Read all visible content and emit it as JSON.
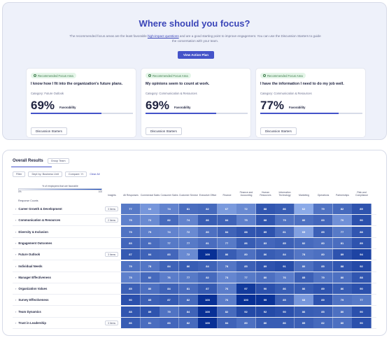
{
  "focus": {
    "title": "Where should you focus?",
    "desc_part1": "The recommended focus areas are the least favorable",
    "desc_link": "high-impact questions",
    "desc_part2": "and are a good starting point to improve engagement. You can use the Discussion Starters to guide the conversation with your team.",
    "action_button": "View Action Plan",
    "cards": [
      {
        "tag": "Recommended Focus Area",
        "title": "I know how I fit into the organization's future plans.",
        "category": "Category: Future Outlook",
        "percent": "69%",
        "percent_value": 69,
        "fav_label": "Favorability",
        "button": "Discussion Starters"
      },
      {
        "tag": "Recommended Focus Area",
        "title": "My opinions seem to count at work.",
        "category": "Category: Communication & Resources",
        "percent": "69%",
        "percent_value": 69,
        "fav_label": "Favorability",
        "button": "Discussion Starters"
      },
      {
        "tag": "Recommended Focus Area",
        "title": "I have the information I need to do my job well.",
        "category": "Category: Communication & Resources",
        "percent": "77%",
        "percent_value": 77,
        "fav_label": "Favorability",
        "button": "Discussion Starters"
      }
    ]
  },
  "results": {
    "title": "Overall Results",
    "header_pill": "Group Team",
    "filters": [
      "Filter",
      "Dept by: Business Unit",
      "Compare: Yr"
    ],
    "filter_link": "Clear All",
    "legend_label": "% of employees that are favorable",
    "legend_low": "0%",
    "legend_high": "100",
    "response_label": "Response Counts",
    "columns": [
      "Insights",
      "All Responses",
      "Commercial Sales",
      "Consumer Sales",
      "Customer Service",
      "Executive Office",
      "Finance",
      "Finance and Accounting",
      "Human Resources",
      "Information Technology",
      "Marketing",
      "Operations",
      "Partnerships",
      "Risk and Compliance"
    ],
    "rows": [
      {
        "label": "Career Growth & Development",
        "badge": "3 Items",
        "values": [
          77,
          68,
          74,
          81,
          82,
          67,
          72,
          88,
          86,
          62,
          79,
          82,
          89
        ]
      },
      {
        "label": "Communication & Resources",
        "badge": "2 Items",
        "values": [
          75,
          72,
          82,
          74,
          86,
          84,
          75,
          88,
          79,
          80,
          83,
          70,
          90
        ]
      },
      {
        "label": "Diversity & Inclusion",
        "badge": "",
        "values": [
          79,
          75,
          74,
          72,
          80,
          84,
          88,
          89,
          81,
          65,
          85,
          77,
          88
        ]
      },
      {
        "label": "Engagement Outcomes",
        "badge": "",
        "values": [
          83,
          81,
          77,
          77,
          81,
          77,
          86,
          83,
          85,
          82,
          80,
          81,
          89
        ]
      },
      {
        "label": "Future Outlook",
        "badge": "3 Items",
        "values": [
          87,
          84,
          83,
          72,
          100,
          86,
          80,
          86,
          84,
          78,
          80,
          89,
          94
        ]
      },
      {
        "label": "Individual Needs",
        "badge": "",
        "values": [
          79,
          78,
          84,
          86,
          84,
          78,
          85,
          89,
          91,
          80,
          85,
          88,
          92
        ]
      },
      {
        "label": "Manager Effectiveness",
        "badge": "",
        "values": [
          75,
          82,
          76,
          77,
          82,
          73,
          77,
          80,
          76,
          85,
          79,
          80,
          88
        ]
      },
      {
        "label": "Organization Values",
        "badge": "",
        "values": [
          85,
          80,
          84,
          81,
          87,
          76,
          97,
          90,
          86,
          86,
          89,
          86,
          90
        ]
      },
      {
        "label": "Survey Effectiveness",
        "badge": "",
        "values": [
          90,
          85,
          87,
          82,
          100,
          76,
          100,
          99,
          85,
          68,
          89,
          79,
          77
        ]
      },
      {
        "label": "Team Dynamics",
        "badge": "",
        "values": [
          88,
          89,
          79,
          84,
          100,
          82,
          92,
          92,
          90,
          86,
          85,
          80,
          90
        ]
      },
      {
        "label": "Trust in Leadership",
        "badge": "3 Items",
        "values": [
          86,
          81,
          83,
          82,
          100,
          84,
          80,
          86,
          86,
          85,
          82,
          80,
          90
        ]
      }
    ]
  }
}
